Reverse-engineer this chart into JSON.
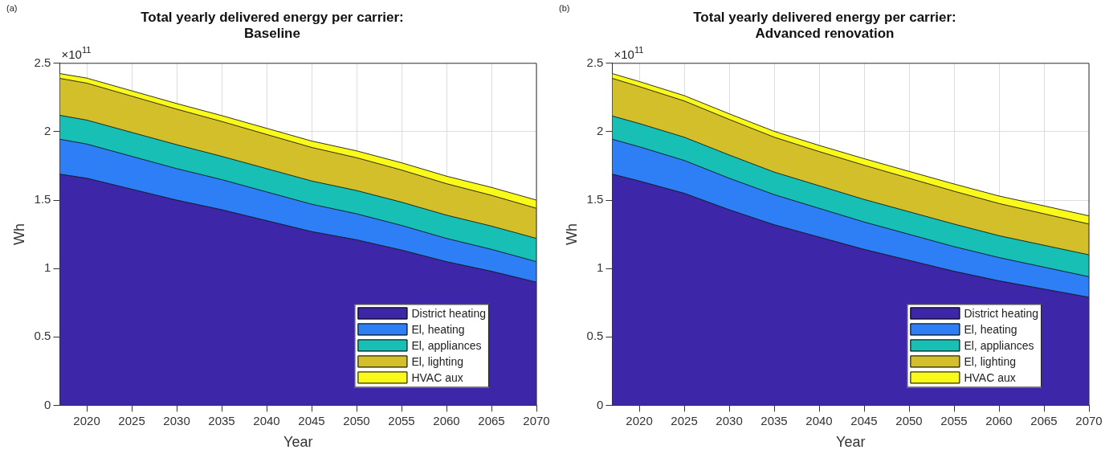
{
  "chart_data": [
    {
      "type": "area",
      "title": "Total yearly delivered energy per carrier:\nBaseline",
      "xlabel": "Year",
      "ylabel": "Wh",
      "annotations": [
        "(a)",
        "×10$^{11}$"
      ],
      "x": [
        2017,
        2020,
        2025,
        2030,
        2035,
        2040,
        2045,
        2050,
        2055,
        2060,
        2065,
        2070
      ],
      "stacked": true,
      "series": [
        {
          "name": "District heating",
          "color": "#3e26a8",
          "values": [
            1.69,
            1.66,
            1.58,
            1.5,
            1.43,
            1.35,
            1.27,
            1.21,
            1.135,
            1.05,
            0.98,
            0.9
          ]
        },
        {
          "name": "El, heating",
          "color": "#2e7ff5",
          "values": [
            0.255,
            0.25,
            0.24,
            0.23,
            0.22,
            0.21,
            0.2,
            0.19,
            0.18,
            0.17,
            0.16,
            0.15
          ]
        },
        {
          "name": "El, appliances",
          "color": "#17bfb4",
          "values": [
            0.175,
            0.175,
            0.175,
            0.175,
            0.17,
            0.17,
            0.17,
            0.17,
            0.17,
            0.17,
            0.17,
            0.17
          ]
        },
        {
          "name": "El, lighting",
          "color": "#d2bf2a",
          "values": [
            0.27,
            0.27,
            0.265,
            0.26,
            0.255,
            0.25,
            0.245,
            0.24,
            0.235,
            0.23,
            0.225,
            0.22
          ]
        },
        {
          "name": "HVAC aux",
          "color": "#f9f91a",
          "values": [
            0.035,
            0.037,
            0.039,
            0.041,
            0.043,
            0.045,
            0.047,
            0.05,
            0.053,
            0.055,
            0.058,
            0.06
          ]
        }
      ],
      "xlim": [
        2017,
        2070
      ],
      "xticks": [
        2020,
        2025,
        2030,
        2035,
        2040,
        2045,
        2050,
        2055,
        2060,
        2065,
        2070
      ],
      "ylim": [
        0,
        2.5
      ],
      "yticks": [
        0,
        0.5,
        1,
        1.5,
        2,
        2.5
      ],
      "grid": true,
      "legend": "bottom right"
    },
    {
      "type": "area",
      "title": "Total yearly delivered energy per carrier:\nAdvanced renovation",
      "xlabel": "Year",
      "ylabel": "Wh",
      "annotations": [
        "(b)",
        "×10$^{11}$"
      ],
      "x": [
        2017,
        2020,
        2025,
        2030,
        2035,
        2040,
        2045,
        2050,
        2055,
        2060,
        2065,
        2070
      ],
      "stacked": true,
      "series": [
        {
          "name": "District heating",
          "color": "#3e26a8",
          "values": [
            1.69,
            1.64,
            1.55,
            1.43,
            1.32,
            1.23,
            1.14,
            1.06,
            0.98,
            0.91,
            0.85,
            0.79
          ]
        },
        {
          "name": "El, heating",
          "color": "#2e7ff5",
          "values": [
            0.255,
            0.25,
            0.24,
            0.23,
            0.22,
            0.21,
            0.2,
            0.19,
            0.18,
            0.17,
            0.16,
            0.15
          ]
        },
        {
          "name": "El, appliances",
          "color": "#17bfb4",
          "values": [
            0.17,
            0.17,
            0.17,
            0.17,
            0.165,
            0.165,
            0.165,
            0.165,
            0.165,
            0.16,
            0.16,
            0.16
          ]
        },
        {
          "name": "El, lighting",
          "color": "#d2bf2a",
          "values": [
            0.275,
            0.27,
            0.265,
            0.26,
            0.255,
            0.25,
            0.25,
            0.245,
            0.24,
            0.235,
            0.23,
            0.225
          ]
        },
        {
          "name": "HVAC aux",
          "color": "#f9f91a",
          "values": [
            0.035,
            0.037,
            0.039,
            0.041,
            0.043,
            0.045,
            0.048,
            0.05,
            0.053,
            0.055,
            0.058,
            0.06
          ]
        }
      ],
      "xlim": [
        2017,
        2070
      ],
      "xticks": [
        2020,
        2025,
        2030,
        2035,
        2040,
        2045,
        2050,
        2055,
        2060,
        2065,
        2070
      ],
      "ylim": [
        0,
        2.5
      ],
      "yticks": [
        0,
        0.5,
        1,
        1.5,
        2,
        2.5
      ],
      "grid": true,
      "legend": "bottom right"
    }
  ]
}
